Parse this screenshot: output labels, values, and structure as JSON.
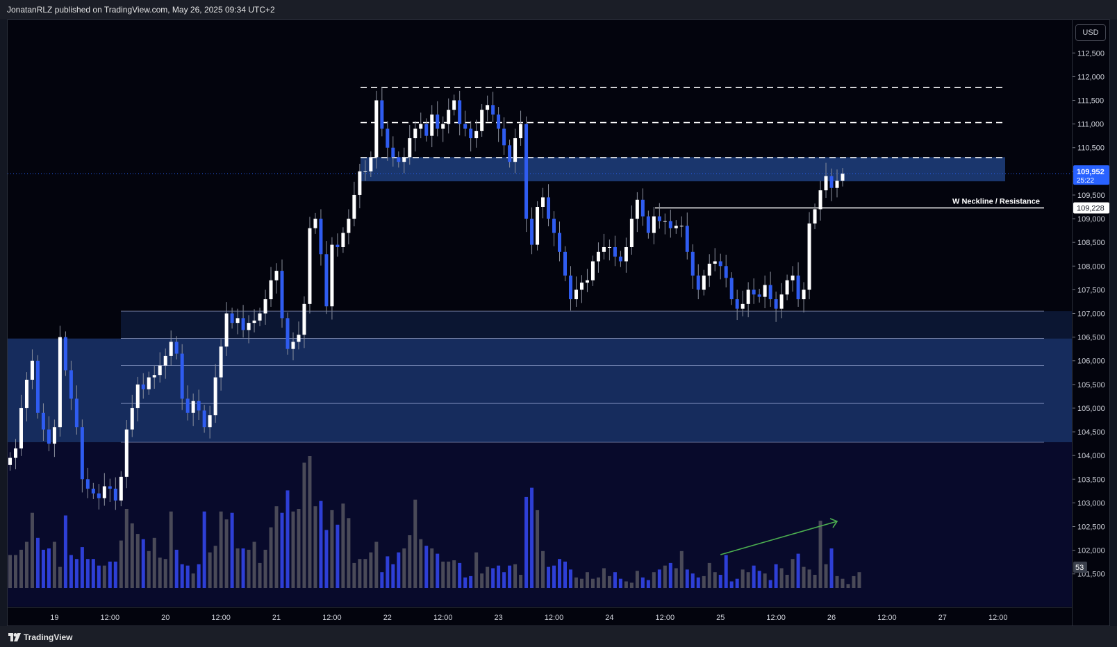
{
  "header": {
    "text": "JonatanRLZ published on TradingView.com, May 26, 2025 09:34 UTC+2"
  },
  "footer": {
    "brand": "TradingView"
  },
  "axis": {
    "currency": "USD"
  },
  "colors": {
    "background": "#03040d",
    "up_candle": "#ffffff",
    "down_candle": "#2f5cf0",
    "zone_fill": "#1e3a78",
    "volume_down": "#2e3fd6",
    "volume_up": "#4a4a58",
    "trend_arrow": "#4caf50",
    "current_price_badge": "#2962ff"
  },
  "chart_data": {
    "type": "candlestick",
    "title": "",
    "y_ticks": [
      "112,500",
      "112,000",
      "111,500",
      "111,000",
      "110,500",
      "110,000",
      "109,500",
      "109,000",
      "108,500",
      "108,000",
      "107,500",
      "107,000",
      "106,500",
      "106,000",
      "105,500",
      "105,000",
      "104,500",
      "104,000",
      "103,500",
      "103,000",
      "102,500",
      "102,000",
      "101,500"
    ],
    "y_range": [
      101100,
      112900
    ],
    "x_ticks": [
      {
        "label": "19",
        "i": 8
      },
      {
        "label": "12:00",
        "i": 18
      },
      {
        "label": "20",
        "i": 28
      },
      {
        "label": "12:00",
        "i": 38
      },
      {
        "label": "21",
        "i": 48
      },
      {
        "label": "12:00",
        "i": 58
      },
      {
        "label": "22",
        "i": 68
      },
      {
        "label": "12:00",
        "i": 78
      },
      {
        "label": "23",
        "i": 88
      },
      {
        "label": "12:00",
        "i": 98
      },
      {
        "label": "24",
        "i": 108
      },
      {
        "label": "12:00",
        "i": 118
      },
      {
        "label": "25",
        "i": 128
      },
      {
        "label": "12:00",
        "i": 138
      },
      {
        "label": "26",
        "i": 148
      },
      {
        "label": "12:00",
        "i": 158
      },
      {
        "label": "27",
        "i": 168
      },
      {
        "label": "12:00",
        "i": 178
      }
    ],
    "closes": [
      103950,
      104150,
      105000,
      105600,
      106000,
      104900,
      104550,
      104250,
      104600,
      106500,
      105800,
      105200,
      104600,
      103500,
      103300,
      103200,
      103100,
      103350,
      103300,
      103050,
      103550,
      104550,
      105000,
      105500,
      105400,
      105650,
      105700,
      105900,
      106100,
      106400,
      106150,
      105200,
      104900,
      105150,
      104950,
      104600,
      104850,
      105650,
      106300,
      107000,
      106800,
      106900,
      106650,
      106800,
      106850,
      107000,
      107300,
      107700,
      107900,
      106900,
      106250,
      106400,
      106550,
      107200,
      108800,
      109000,
      108250,
      107150,
      108450,
      108400,
      108700,
      109000,
      109500,
      110000,
      110000,
      110300,
      111500,
      110900,
      110500,
      110300,
      110200,
      110300,
      110700,
      110900,
      111000,
      110750,
      111200,
      110900,
      111000,
      111300,
      111500,
      111000,
      110900,
      110700,
      110850,
      111300,
      111400,
      111200,
      110900,
      110550,
      110200,
      110700,
      111000,
      109000,
      108450,
      109250,
      109450,
      109000,
      108700,
      108300,
      107800,
      107300,
      107500,
      107650,
      107700,
      108100,
      108300,
      108400,
      108400,
      108200,
      108100,
      108400,
      109000,
      109400,
      109050,
      108700,
      109050,
      108950,
      108950,
      108800,
      108850,
      108850,
      108300,
      107800,
      107500,
      107800,
      108050,
      108100,
      108000,
      107750,
      107300,
      107100,
      107200,
      107500,
      107400,
      107350,
      107600,
      107300,
      107100,
      107400,
      107700,
      107800,
      107300,
      107500,
      108900,
      109200,
      109600,
      109900,
      109650,
      109800,
      109950
    ],
    "volumes": [
      0.25,
      0.25,
      0.29,
      0.35,
      0.57,
      0.38,
      0.29,
      0.3,
      0.35,
      0.16,
      0.55,
      0.25,
      0.22,
      0.31,
      0.22,
      0.22,
      0.17,
      0.17,
      0.2,
      0.2,
      0.36,
      0.6,
      0.49,
      0.41,
      0.37,
      0.28,
      0.38,
      0.23,
      0.22,
      0.58,
      0.29,
      0.18,
      0.17,
      0.11,
      0.18,
      0.58,
      0.27,
      0.32,
      0.58,
      0.52,
      0.57,
      0.3,
      0.3,
      0.29,
      0.35,
      0.19,
      0.29,
      0.46,
      0.62,
      0.57,
      0.74,
      0.58,
      0.6,
      0.95,
      1.0,
      0.62,
      0.66,
      0.44,
      0.59,
      0.48,
      0.64,
      0.53,
      0.19,
      0.22,
      0.22,
      0.27,
      0.35,
      0.12,
      0.24,
      0.18,
      0.27,
      0.3,
      0.4,
      0.67,
      0.37,
      0.32,
      0.3,
      0.26,
      0.2,
      0.2,
      0.21,
      0.19,
      0.08,
      0.09,
      0.27,
      0.11,
      0.16,
      0.15,
      0.17,
      0.12,
      0.17,
      0.18,
      0.1,
      0.69,
      0.76,
      0.59,
      0.28,
      0.16,
      0.17,
      0.22,
      0.2,
      0.14,
      0.08,
      0.07,
      0.12,
      0.07,
      0.08,
      0.15,
      0.09,
      0.12,
      0.07,
      0.05,
      0.04,
      0.13,
      0.08,
      0.06,
      0.12,
      0.14,
      0.17,
      0.19,
      0.15,
      0.28,
      0.14,
      0.11,
      0.08,
      0.09,
      0.19,
      0.12,
      0.1,
      0.25,
      0.05,
      0.07,
      0.14,
      0.12,
      0.17,
      0.13,
      0.11,
      0.06,
      0.18,
      0.15,
      0.1,
      0.22,
      0.26,
      0.16,
      0.14,
      0.1,
      0.51,
      0.18,
      0.3,
      0.09,
      0.07,
      0.03,
      0.09,
      0.12
    ],
    "current_price": {
      "value": "109,952",
      "countdown": "25:22",
      "y": 109952
    },
    "neckline": {
      "value": "109,228",
      "label": "W Neckline / Resistance",
      "y": 109228
    },
    "resistance_levels": [
      111770,
      111030,
      110290
    ],
    "resistance_zone": [
      109790,
      110300
    ],
    "demand_zones": [
      {
        "from": 107050,
        "to": 106470
      },
      {
        "from": 106470,
        "to": 104280
      }
    ],
    "volume_readout": "53"
  }
}
